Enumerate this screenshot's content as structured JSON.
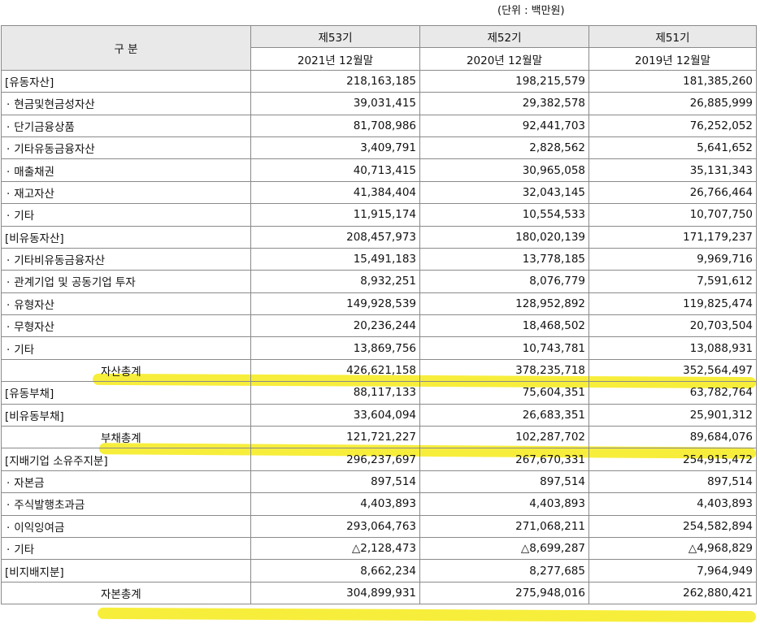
{
  "unit_note": "(단위 : 백만원)",
  "header": {
    "category": "구 분",
    "periods": [
      "제53기",
      "제52기",
      "제51기"
    ],
    "dates": [
      "2021년 12월말",
      "2020년 12월말",
      "2019년 12월말"
    ]
  },
  "rows": [
    {
      "label": "[유동자산]",
      "type": "section",
      "values": [
        "218,163,185",
        "198,215,579",
        "181,385,260"
      ]
    },
    {
      "label": "현금및현금성자산",
      "type": "item",
      "values": [
        "39,031,415",
        "29,382,578",
        "26,885,999"
      ]
    },
    {
      "label": "단기금융상품",
      "type": "item",
      "values": [
        "81,708,986",
        "92,441,703",
        "76,252,052"
      ]
    },
    {
      "label": "기타유동금융자산",
      "type": "item",
      "values": [
        "3,409,791",
        "2,828,562",
        "5,641,652"
      ]
    },
    {
      "label": "매출채권",
      "type": "item",
      "values": [
        "40,713,415",
        "30,965,058",
        "35,131,343"
      ]
    },
    {
      "label": "재고자산",
      "type": "item",
      "values": [
        "41,384,404",
        "32,043,145",
        "26,766,464"
      ]
    },
    {
      "label": "기타",
      "type": "item",
      "values": [
        "11,915,174",
        "10,554,533",
        "10,707,750"
      ]
    },
    {
      "label": "[비유동자산]",
      "type": "section",
      "values": [
        "208,457,973",
        "180,020,139",
        "171,179,237"
      ]
    },
    {
      "label": "기타비유동금융자산",
      "type": "item",
      "values": [
        "15,491,183",
        "13,778,185",
        "9,969,716"
      ]
    },
    {
      "label": "관계기업 및 공동기업 투자",
      "type": "item",
      "values": [
        "8,932,251",
        "8,076,779",
        "7,591,612"
      ]
    },
    {
      "label": "유형자산",
      "type": "item",
      "values": [
        "149,928,539",
        "128,952,892",
        "119,825,474"
      ]
    },
    {
      "label": "무형자산",
      "type": "item",
      "values": [
        "20,236,244",
        "18,468,502",
        "20,703,504"
      ]
    },
    {
      "label": "기타",
      "type": "item",
      "values": [
        "13,869,756",
        "10,743,781",
        "13,088,931"
      ]
    },
    {
      "label": "자산총계",
      "type": "total",
      "values": [
        "426,621,158",
        "378,235,718",
        "352,564,497"
      ]
    },
    {
      "label": "[유동부채]",
      "type": "section",
      "values": [
        "88,117,133",
        "75,604,351",
        "63,782,764"
      ]
    },
    {
      "label": "[비유동부채]",
      "type": "section",
      "values": [
        "33,604,094",
        "26,683,351",
        "25,901,312"
      ]
    },
    {
      "label": "부채총계",
      "type": "total",
      "values": [
        "121,721,227",
        "102,287,702",
        "89,684,076"
      ]
    },
    {
      "label": "[지배기업 소유주지분]",
      "type": "section",
      "values": [
        "296,237,697",
        "267,670,331",
        "254,915,472"
      ]
    },
    {
      "label": "자본금",
      "type": "item",
      "values": [
        "897,514",
        "897,514",
        "897,514"
      ]
    },
    {
      "label": "주식발행초과금",
      "type": "item",
      "values": [
        "4,403,893",
        "4,403,893",
        "4,403,893"
      ]
    },
    {
      "label": "이익잉여금",
      "type": "item",
      "values": [
        "293,064,763",
        "271,068,211",
        "254,582,894"
      ]
    },
    {
      "label": "기타",
      "type": "item",
      "values": [
        "△2,128,473",
        "△8,699,287",
        "△4,968,829"
      ]
    },
    {
      "label": "[비지배지분]",
      "type": "section",
      "values": [
        "8,662,234",
        "8,277,685",
        "7,964,949"
      ]
    },
    {
      "label": "자본총계",
      "type": "total",
      "values": [
        "304,899,931",
        "275,948,016",
        "262,880,421"
      ]
    }
  ],
  "highlight_color": "#f7ee3c"
}
